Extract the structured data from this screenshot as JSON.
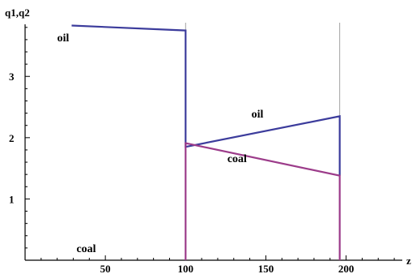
{
  "chart_data": {
    "type": "line",
    "title": "",
    "xlabel": "z",
    "ylabel": "q1,q2",
    "xlim": [
      0,
      235
    ],
    "ylim": [
      0,
      3.85
    ],
    "x_ticks": [
      50,
      100,
      150,
      200
    ],
    "y_ticks": [
      1,
      2,
      3
    ],
    "x_minor_step": 10,
    "y_minor_step": 0.2,
    "vertical_gridlines": [
      100,
      196
    ],
    "colors": {
      "oil": "#3c3c9c",
      "coal": "#9c3c8a"
    },
    "series": [
      {
        "color_key": "oil",
        "points": [
          [
            29,
            3.83
          ],
          [
            100,
            3.75
          ],
          [
            100,
            1.85
          ],
          [
            196,
            2.35
          ],
          [
            196,
            1.38
          ]
        ]
      },
      {
        "color_key": "coal",
        "points": [
          [
            100,
            0
          ],
          [
            100,
            1.91
          ],
          [
            196,
            1.38
          ],
          [
            196,
            0
          ]
        ]
      }
    ],
    "annotations": [
      {
        "text": "oil",
        "x": 20,
        "y": 3.57
      },
      {
        "text": "oil",
        "x": 141,
        "y": 2.33
      },
      {
        "text": "coal",
        "x": 126,
        "y": 1.6
      },
      {
        "text": "coal",
        "x": 32,
        "y": 0.13
      }
    ]
  }
}
